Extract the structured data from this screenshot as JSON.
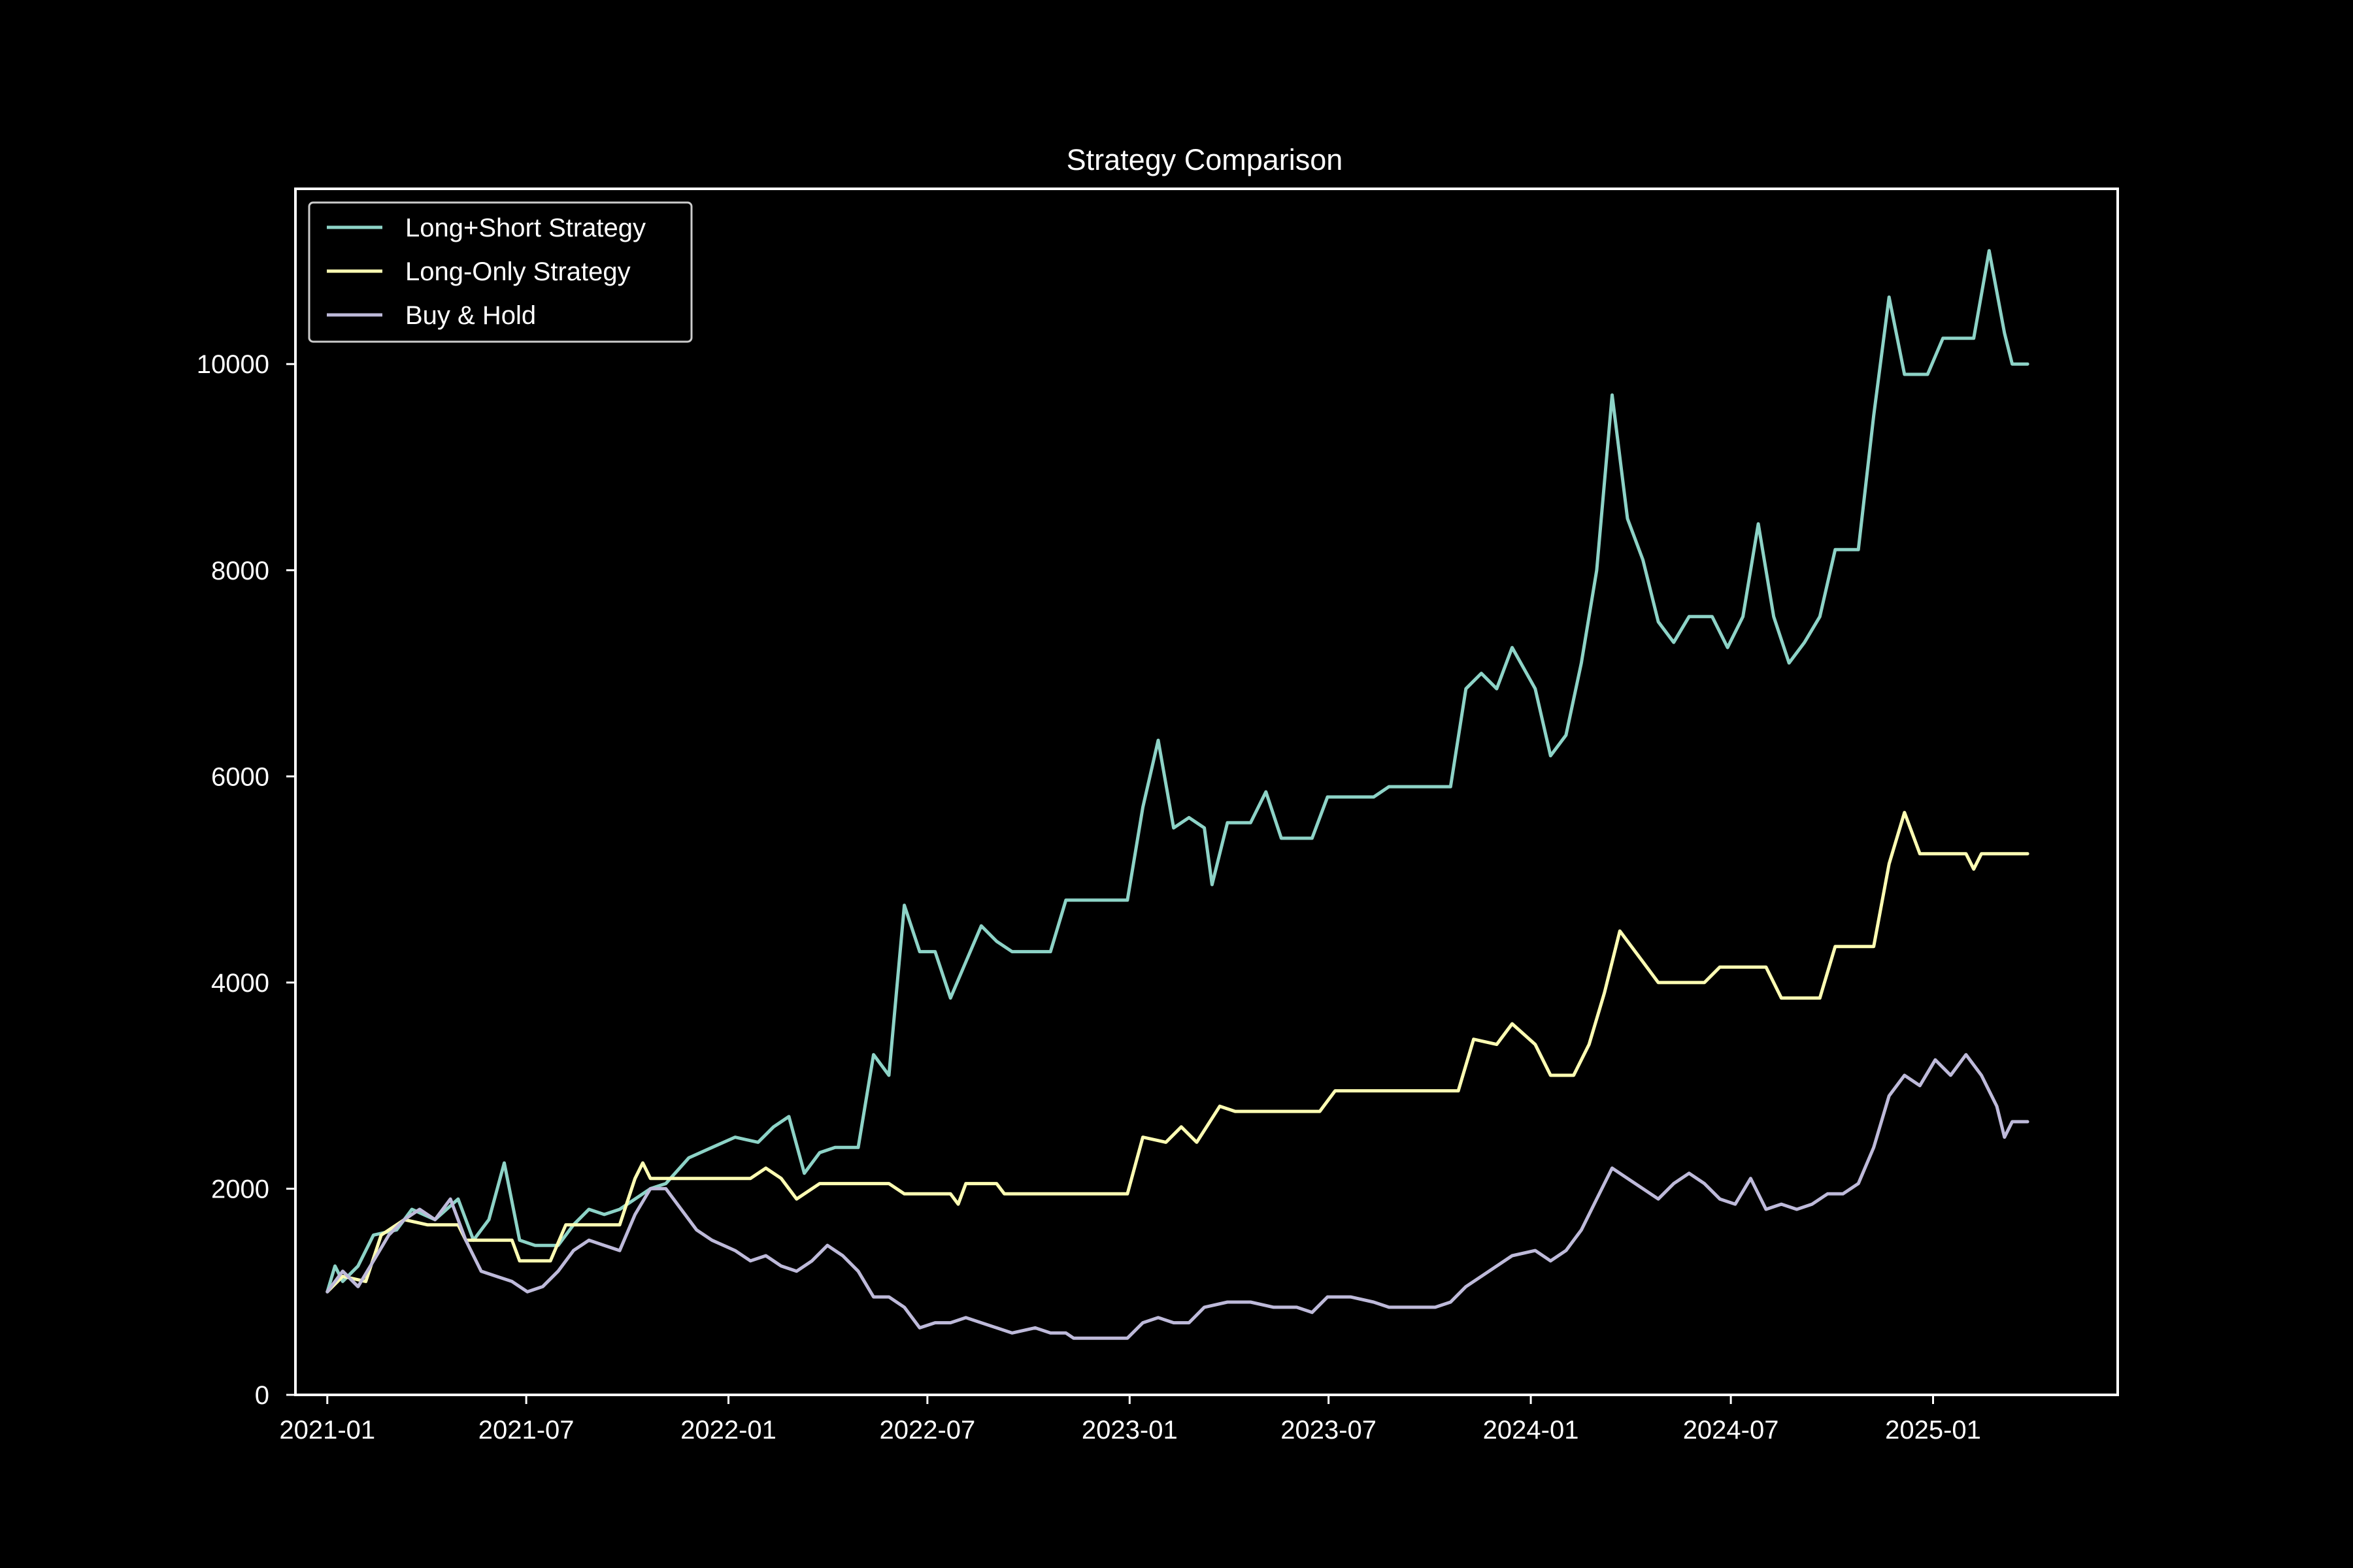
{
  "chart_data": {
    "type": "line",
    "title": "Strategy Comparison",
    "xlabel": "",
    "ylabel": "",
    "background": "#000000",
    "foreground": "#ffffff",
    "grid": false,
    "legend_position": "top-left",
    "xlim": [
      "2020-12-03",
      "2025-06-18"
    ],
    "ylim": [
      0,
      11700
    ],
    "x_ticks": [
      "2021-01",
      "2021-07",
      "2022-01",
      "2022-07",
      "2023-01",
      "2023-07",
      "2024-01",
      "2024-07",
      "2025-01"
    ],
    "y_ticks": [
      0,
      2000,
      4000,
      6000,
      8000,
      10000
    ],
    "series": [
      {
        "name": "Long+Short Strategy",
        "color": "#8dd3c7",
        "points": [
          [
            "2021-01-01",
            1000
          ],
          [
            "2021-01-08",
            1250
          ],
          [
            "2021-01-15",
            1100
          ],
          [
            "2021-01-29",
            1250
          ],
          [
            "2021-02-12",
            1550
          ],
          [
            "2021-03-05",
            1600
          ],
          [
            "2021-03-19",
            1800
          ],
          [
            "2021-04-09",
            1700
          ],
          [
            "2021-04-30",
            1900
          ],
          [
            "2021-05-14",
            1500
          ],
          [
            "2021-05-28",
            1700
          ],
          [
            "2021-06-11",
            2250
          ],
          [
            "2021-06-25",
            1500
          ],
          [
            "2021-07-09",
            1450
          ],
          [
            "2021-07-30",
            1450
          ],
          [
            "2021-08-13",
            1650
          ],
          [
            "2021-08-27",
            1800
          ],
          [
            "2021-09-10",
            1750
          ],
          [
            "2021-09-24",
            1800
          ],
          [
            "2021-10-08",
            1900
          ],
          [
            "2021-10-22",
            2000
          ],
          [
            "2021-11-05",
            2050
          ],
          [
            "2021-11-26",
            2300
          ],
          [
            "2021-12-17",
            2400
          ],
          [
            "2022-01-07",
            2500
          ],
          [
            "2022-01-28",
            2450
          ],
          [
            "2022-02-11",
            2600
          ],
          [
            "2022-02-25",
            2700
          ],
          [
            "2022-03-11",
            2150
          ],
          [
            "2022-03-25",
            2350
          ],
          [
            "2022-04-08",
            2400
          ],
          [
            "2022-04-29",
            2400
          ],
          [
            "2022-05-13",
            3300
          ],
          [
            "2022-05-27",
            3100
          ],
          [
            "2022-06-10",
            4750
          ],
          [
            "2022-06-24",
            4300
          ],
          [
            "2022-07-08",
            4300
          ],
          [
            "2022-07-22",
            3850
          ],
          [
            "2022-08-05",
            4200
          ],
          [
            "2022-08-19",
            4550
          ],
          [
            "2022-09-02",
            4400
          ],
          [
            "2022-09-16",
            4300
          ],
          [
            "2022-10-07",
            4300
          ],
          [
            "2022-10-21",
            4300
          ],
          [
            "2022-11-04",
            4800
          ],
          [
            "2022-12-16",
            4800
          ],
          [
            "2022-12-30",
            4800
          ],
          [
            "2023-01-13",
            5700
          ],
          [
            "2023-01-27",
            6350
          ],
          [
            "2023-02-10",
            5500
          ],
          [
            "2023-02-24",
            5600
          ],
          [
            "2023-03-10",
            5500
          ],
          [
            "2023-03-17",
            4950
          ],
          [
            "2023-03-31",
            5550
          ],
          [
            "2023-04-21",
            5550
          ],
          [
            "2023-05-05",
            5850
          ],
          [
            "2023-05-19",
            5400
          ],
          [
            "2023-06-16",
            5400
          ],
          [
            "2023-06-30",
            5800
          ],
          [
            "2023-08-11",
            5800
          ],
          [
            "2023-08-25",
            5900
          ],
          [
            "2023-10-20",
            5900
          ],
          [
            "2023-11-03",
            6850
          ],
          [
            "2023-11-17",
            7000
          ],
          [
            "2023-12-01",
            6850
          ],
          [
            "2023-12-15",
            7250
          ],
          [
            "2024-01-05",
            6850
          ],
          [
            "2024-01-19",
            6200
          ],
          [
            "2024-02-02",
            6400
          ],
          [
            "2024-02-16",
            7100
          ],
          [
            "2024-03-01",
            8000
          ],
          [
            "2024-03-15",
            9700
          ],
          [
            "2024-03-29",
            8500
          ],
          [
            "2024-04-12",
            8100
          ],
          [
            "2024-04-26",
            7500
          ],
          [
            "2024-05-10",
            7300
          ],
          [
            "2024-05-24",
            7550
          ],
          [
            "2024-06-14",
            7550
          ],
          [
            "2024-06-28",
            7250
          ],
          [
            "2024-07-12",
            7550
          ],
          [
            "2024-07-26",
            8450
          ],
          [
            "2024-08-09",
            7550
          ],
          [
            "2024-08-23",
            7100
          ],
          [
            "2024-09-06",
            7300
          ],
          [
            "2024-09-20",
            7550
          ],
          [
            "2024-10-04",
            8200
          ],
          [
            "2024-10-25",
            8200
          ],
          [
            "2024-11-08",
            9500
          ],
          [
            "2024-11-22",
            10650
          ],
          [
            "2024-12-06",
            9900
          ],
          [
            "2024-12-27",
            9900
          ],
          [
            "2025-01-10",
            10250
          ],
          [
            "2025-02-07",
            10250
          ],
          [
            "2025-02-21",
            11100
          ],
          [
            "2025-03-07",
            10300
          ],
          [
            "2025-03-14",
            10000
          ],
          [
            "2025-03-28",
            10000
          ]
        ]
      },
      {
        "name": "Long-Only Strategy",
        "color": "#ffffb3",
        "points": [
          [
            "2021-01-01",
            1000
          ],
          [
            "2021-01-15",
            1150
          ],
          [
            "2021-02-05",
            1100
          ],
          [
            "2021-02-19",
            1550
          ],
          [
            "2021-03-12",
            1700
          ],
          [
            "2021-04-02",
            1650
          ],
          [
            "2021-04-30",
            1650
          ],
          [
            "2021-05-07",
            1500
          ],
          [
            "2021-06-18",
            1500
          ],
          [
            "2021-06-25",
            1300
          ],
          [
            "2021-07-23",
            1300
          ],
          [
            "2021-08-06",
            1650
          ],
          [
            "2021-09-24",
            1650
          ],
          [
            "2021-10-08",
            2100
          ],
          [
            "2021-10-15",
            2250
          ],
          [
            "2021-10-22",
            2100
          ],
          [
            "2022-01-21",
            2100
          ],
          [
            "2022-02-04",
            2200
          ],
          [
            "2022-02-18",
            2100
          ],
          [
            "2022-03-04",
            1900
          ],
          [
            "2022-03-25",
            2050
          ],
          [
            "2022-05-27",
            2050
          ],
          [
            "2022-06-10",
            1950
          ],
          [
            "2022-07-22",
            1950
          ],
          [
            "2022-07-29",
            1850
          ],
          [
            "2022-08-05",
            2050
          ],
          [
            "2022-09-02",
            2050
          ],
          [
            "2022-09-09",
            1950
          ],
          [
            "2022-12-30",
            1950
          ],
          [
            "2023-01-13",
            2500
          ],
          [
            "2023-02-03",
            2450
          ],
          [
            "2023-02-17",
            2600
          ],
          [
            "2023-03-03",
            2450
          ],
          [
            "2023-03-24",
            2800
          ],
          [
            "2023-04-07",
            2750
          ],
          [
            "2023-06-23",
            2750
          ],
          [
            "2023-07-07",
            2950
          ],
          [
            "2023-10-27",
            2950
          ],
          [
            "2023-11-10",
            3450
          ],
          [
            "2023-12-01",
            3400
          ],
          [
            "2023-12-15",
            3600
          ],
          [
            "2024-01-05",
            3400
          ],
          [
            "2024-01-19",
            3100
          ],
          [
            "2024-02-09",
            3100
          ],
          [
            "2024-02-23",
            3400
          ],
          [
            "2024-03-08",
            3900
          ],
          [
            "2024-03-22",
            4500
          ],
          [
            "2024-04-12",
            4200
          ],
          [
            "2024-04-26",
            4000
          ],
          [
            "2024-06-07",
            4000
          ],
          [
            "2024-06-21",
            4150
          ],
          [
            "2024-08-02",
            4150
          ],
          [
            "2024-08-16",
            3850
          ],
          [
            "2024-09-20",
            3850
          ],
          [
            "2024-10-04",
            4350
          ],
          [
            "2024-11-08",
            4350
          ],
          [
            "2024-11-22",
            5150
          ],
          [
            "2024-12-06",
            5650
          ],
          [
            "2024-12-20",
            5250
          ],
          [
            "2025-01-31",
            5250
          ],
          [
            "2025-02-07",
            5100
          ],
          [
            "2025-02-14",
            5250
          ],
          [
            "2025-03-28",
            5250
          ]
        ]
      },
      {
        "name": "Buy & Hold",
        "color": "#bebada",
        "points": [
          [
            "2021-01-01",
            1000
          ],
          [
            "2021-01-15",
            1200
          ],
          [
            "2021-01-29",
            1050
          ],
          [
            "2021-02-12",
            1300
          ],
          [
            "2021-02-26",
            1550
          ],
          [
            "2021-03-12",
            1700
          ],
          [
            "2021-03-26",
            1800
          ],
          [
            "2021-04-09",
            1700
          ],
          [
            "2021-04-23",
            1900
          ],
          [
            "2021-05-07",
            1500
          ],
          [
            "2021-05-21",
            1200
          ],
          [
            "2021-06-04",
            1150
          ],
          [
            "2021-06-18",
            1100
          ],
          [
            "2021-07-02",
            1000
          ],
          [
            "2021-07-16",
            1050
          ],
          [
            "2021-07-30",
            1200
          ],
          [
            "2021-08-13",
            1400
          ],
          [
            "2021-08-27",
            1500
          ],
          [
            "2021-09-10",
            1450
          ],
          [
            "2021-09-24",
            1400
          ],
          [
            "2021-10-08",
            1750
          ],
          [
            "2021-10-22",
            2000
          ],
          [
            "2021-11-05",
            2000
          ],
          [
            "2021-11-19",
            1800
          ],
          [
            "2021-12-03",
            1600
          ],
          [
            "2021-12-17",
            1500
          ],
          [
            "2022-01-07",
            1400
          ],
          [
            "2022-01-21",
            1300
          ],
          [
            "2022-02-04",
            1350
          ],
          [
            "2022-02-18",
            1250
          ],
          [
            "2022-03-04",
            1200
          ],
          [
            "2022-03-18",
            1300
          ],
          [
            "2022-04-01",
            1450
          ],
          [
            "2022-04-15",
            1350
          ],
          [
            "2022-04-29",
            1200
          ],
          [
            "2022-05-13",
            950
          ],
          [
            "2022-05-27",
            950
          ],
          [
            "2022-06-10",
            850
          ],
          [
            "2022-06-24",
            650
          ],
          [
            "2022-07-08",
            700
          ],
          [
            "2022-07-22",
            700
          ],
          [
            "2022-08-05",
            750
          ],
          [
            "2022-08-19",
            700
          ],
          [
            "2022-09-02",
            650
          ],
          [
            "2022-09-16",
            600
          ],
          [
            "2022-10-07",
            650
          ],
          [
            "2022-10-21",
            600
          ],
          [
            "2022-11-04",
            600
          ],
          [
            "2022-11-11",
            550
          ],
          [
            "2022-11-25",
            550
          ],
          [
            "2022-12-16",
            550
          ],
          [
            "2022-12-30",
            550
          ],
          [
            "2023-01-13",
            700
          ],
          [
            "2023-01-27",
            750
          ],
          [
            "2023-02-10",
            700
          ],
          [
            "2023-02-24",
            700
          ],
          [
            "2023-03-10",
            850
          ],
          [
            "2023-03-31",
            900
          ],
          [
            "2023-04-21",
            900
          ],
          [
            "2023-05-12",
            850
          ],
          [
            "2023-06-02",
            850
          ],
          [
            "2023-06-16",
            800
          ],
          [
            "2023-06-30",
            950
          ],
          [
            "2023-07-21",
            950
          ],
          [
            "2023-08-11",
            900
          ],
          [
            "2023-08-25",
            850
          ],
          [
            "2023-09-15",
            850
          ],
          [
            "2023-10-06",
            850
          ],
          [
            "2023-10-20",
            900
          ],
          [
            "2023-11-03",
            1050
          ],
          [
            "2023-11-17",
            1150
          ],
          [
            "2023-12-01",
            1250
          ],
          [
            "2023-12-15",
            1350
          ],
          [
            "2024-01-05",
            1400
          ],
          [
            "2024-01-19",
            1300
          ],
          [
            "2024-02-02",
            1400
          ],
          [
            "2024-02-16",
            1600
          ],
          [
            "2024-03-01",
            1900
          ],
          [
            "2024-03-15",
            2200
          ],
          [
            "2024-03-29",
            2100
          ],
          [
            "2024-04-12",
            2000
          ],
          [
            "2024-04-26",
            1900
          ],
          [
            "2024-05-10",
            2050
          ],
          [
            "2024-05-24",
            2150
          ],
          [
            "2024-06-07",
            2050
          ],
          [
            "2024-06-21",
            1900
          ],
          [
            "2024-07-05",
            1850
          ],
          [
            "2024-07-19",
            2100
          ],
          [
            "2024-08-02",
            1800
          ],
          [
            "2024-08-16",
            1850
          ],
          [
            "2024-08-30",
            1800
          ],
          [
            "2024-09-13",
            1850
          ],
          [
            "2024-09-27",
            1950
          ],
          [
            "2024-10-11",
            1950
          ],
          [
            "2024-10-25",
            2050
          ],
          [
            "2024-11-08",
            2400
          ],
          [
            "2024-11-22",
            2900
          ],
          [
            "2024-12-06",
            3100
          ],
          [
            "2024-12-20",
            3000
          ],
          [
            "2025-01-03",
            3250
          ],
          [
            "2025-01-17",
            3100
          ],
          [
            "2025-01-31",
            3300
          ],
          [
            "2025-02-14",
            3100
          ],
          [
            "2025-02-28",
            2800
          ],
          [
            "2025-03-07",
            2500
          ],
          [
            "2025-03-14",
            2650
          ],
          [
            "2025-03-28",
            2650
          ]
        ]
      }
    ]
  }
}
